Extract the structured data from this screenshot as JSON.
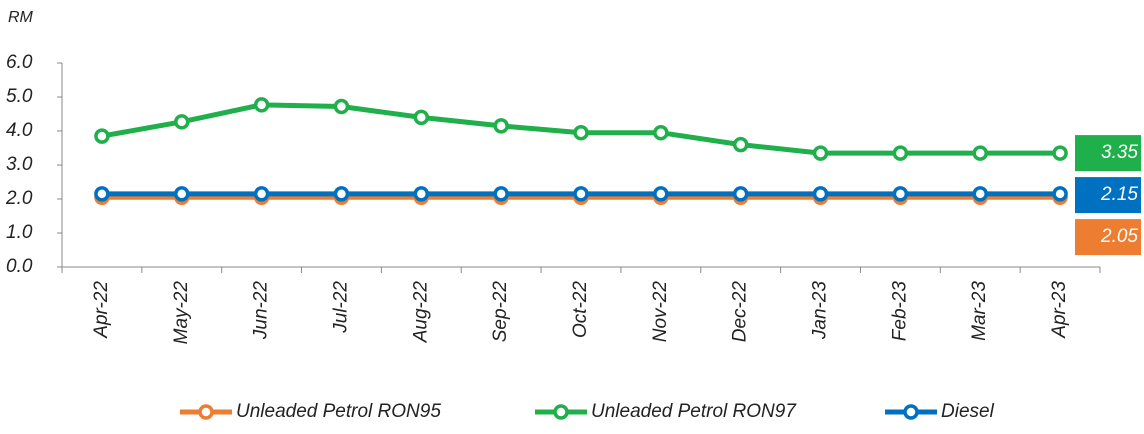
{
  "chart_data": {
    "type": "line",
    "y_label": "RM",
    "categories": [
      "Apr-22",
      "May-22",
      "Jun-22",
      "Jul-22",
      "Aug-22",
      "Sep-22",
      "Oct-22",
      "Nov-22",
      "Dec-22",
      "Jan-23",
      "Feb-23",
      "Mar-23",
      "Apr-23"
    ],
    "series": [
      {
        "name": "Unleaded Petrol RON95",
        "color": "#ed7d31",
        "values": [
          2.05,
          2.05,
          2.05,
          2.05,
          2.05,
          2.05,
          2.05,
          2.05,
          2.05,
          2.05,
          2.05,
          2.05,
          2.05
        ],
        "end_label": "2.05"
      },
      {
        "name": "Unleaded Petrol RON97",
        "color": "#1faf4b",
        "values": [
          3.85,
          4.27,
          4.77,
          4.72,
          4.4,
          4.15,
          3.95,
          3.95,
          3.6,
          3.35,
          3.35,
          3.35,
          3.35
        ],
        "end_label": "3.35"
      },
      {
        "name": "Diesel",
        "color": "#0070c0",
        "values": [
          2.15,
          2.15,
          2.15,
          2.15,
          2.15,
          2.15,
          2.15,
          2.15,
          2.15,
          2.15,
          2.15,
          2.15,
          2.15
        ],
        "end_label": "2.15"
      }
    ],
    "ylim": [
      0,
      6
    ],
    "yticks": [
      {
        "value": 0,
        "label": "0.0"
      },
      {
        "value": 1,
        "label": "1.0"
      },
      {
        "value": 2,
        "label": "2.0"
      },
      {
        "value": 3,
        "label": "3.0"
      },
      {
        "value": 4,
        "label": "4.0"
      },
      {
        "value": 5,
        "label": "5.0"
      },
      {
        "value": 6,
        "label": "6.0"
      }
    ],
    "grid": false,
    "legend": "bottom"
  }
}
